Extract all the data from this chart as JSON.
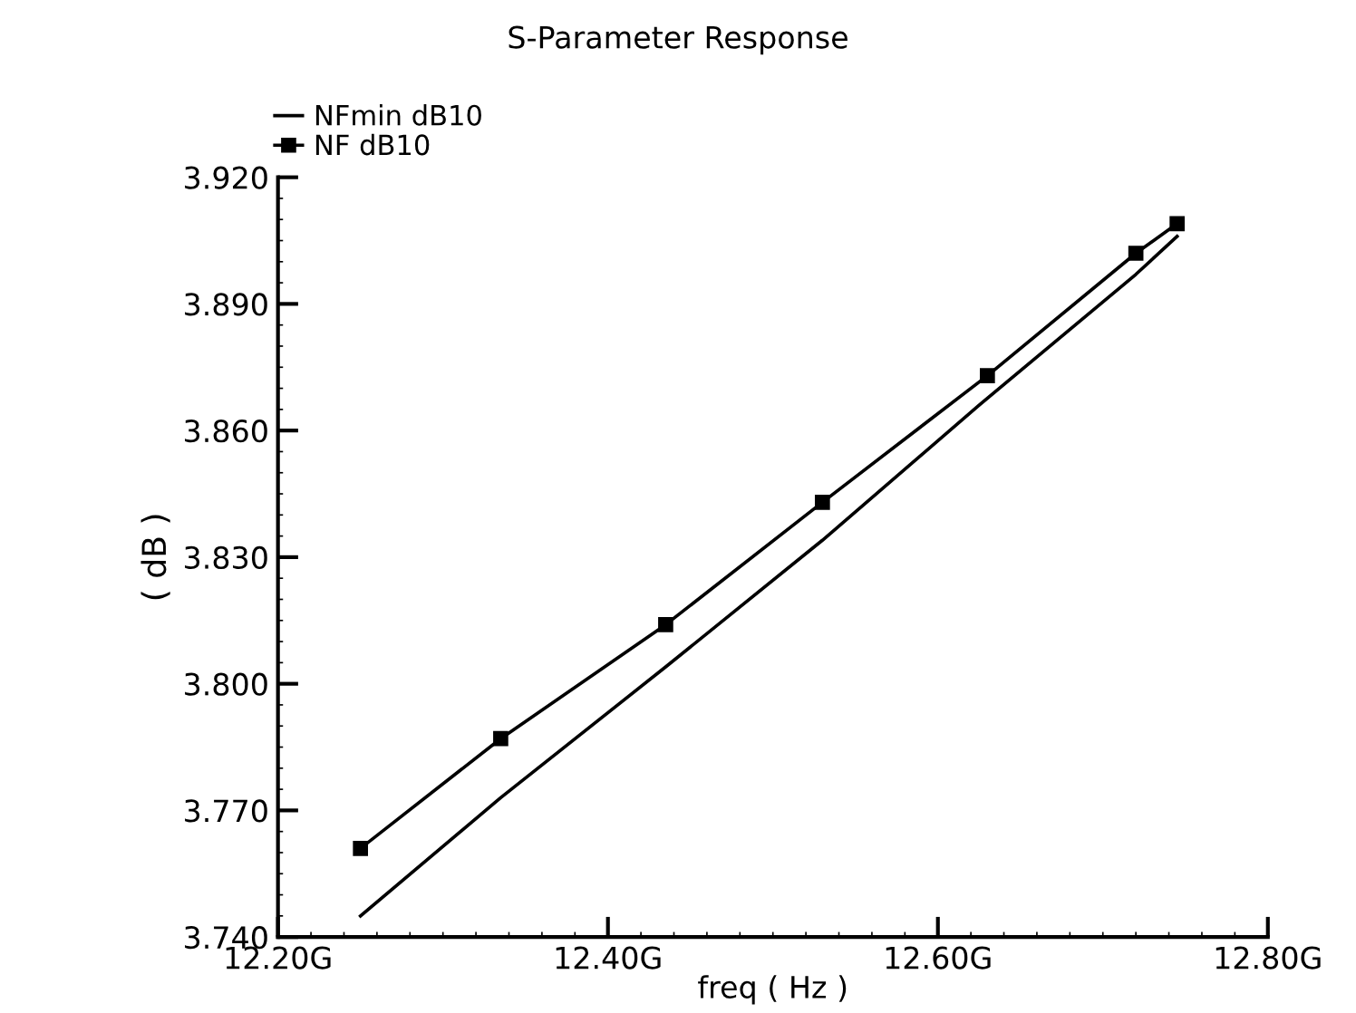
{
  "chart_data": {
    "type": "line",
    "title": "S-Parameter Response",
    "xlabel": "freq ( Hz )",
    "ylabel": "( dB )",
    "series": [
      {
        "name": "NFmin dB10",
        "color": "#000000",
        "marker": "none",
        "x": [
          12.25,
          12.335,
          12.435,
          12.53,
          12.625,
          12.72,
          12.745
        ],
        "values": [
          3.745,
          3.773,
          3.804,
          3.834,
          3.866,
          3.897,
          3.906
        ]
      },
      {
        "name": "NF dB10",
        "color": "#000000",
        "marker": "square",
        "x": [
          12.25,
          12.335,
          12.435,
          12.53,
          12.63,
          12.72,
          12.745
        ],
        "values": [
          3.761,
          3.787,
          3.814,
          3.843,
          3.873,
          3.902,
          3.909
        ]
      }
    ],
    "xlim": [
      12.2,
      12.8
    ],
    "xticks": [
      {
        "value": 12.2,
        "label": "12.20G"
      },
      {
        "value": 12.4,
        "label": "12.40G"
      },
      {
        "value": 12.6,
        "label": "12.60G"
      },
      {
        "value": 12.8,
        "label": "12.80G"
      }
    ],
    "ylim": [
      3.74,
      3.92
    ],
    "yticks": [
      {
        "value": 3.74,
        "label": "3.740"
      },
      {
        "value": 3.77,
        "label": "3.770"
      },
      {
        "value": 3.8,
        "label": "3.800"
      },
      {
        "value": 3.83,
        "label": "3.830"
      },
      {
        "value": 3.86,
        "label": "3.860"
      },
      {
        "value": 3.89,
        "label": "3.890"
      },
      {
        "value": 3.92,
        "label": "3.920"
      }
    ],
    "grid": false,
    "legend": "top left",
    "line_style": "solid"
  }
}
